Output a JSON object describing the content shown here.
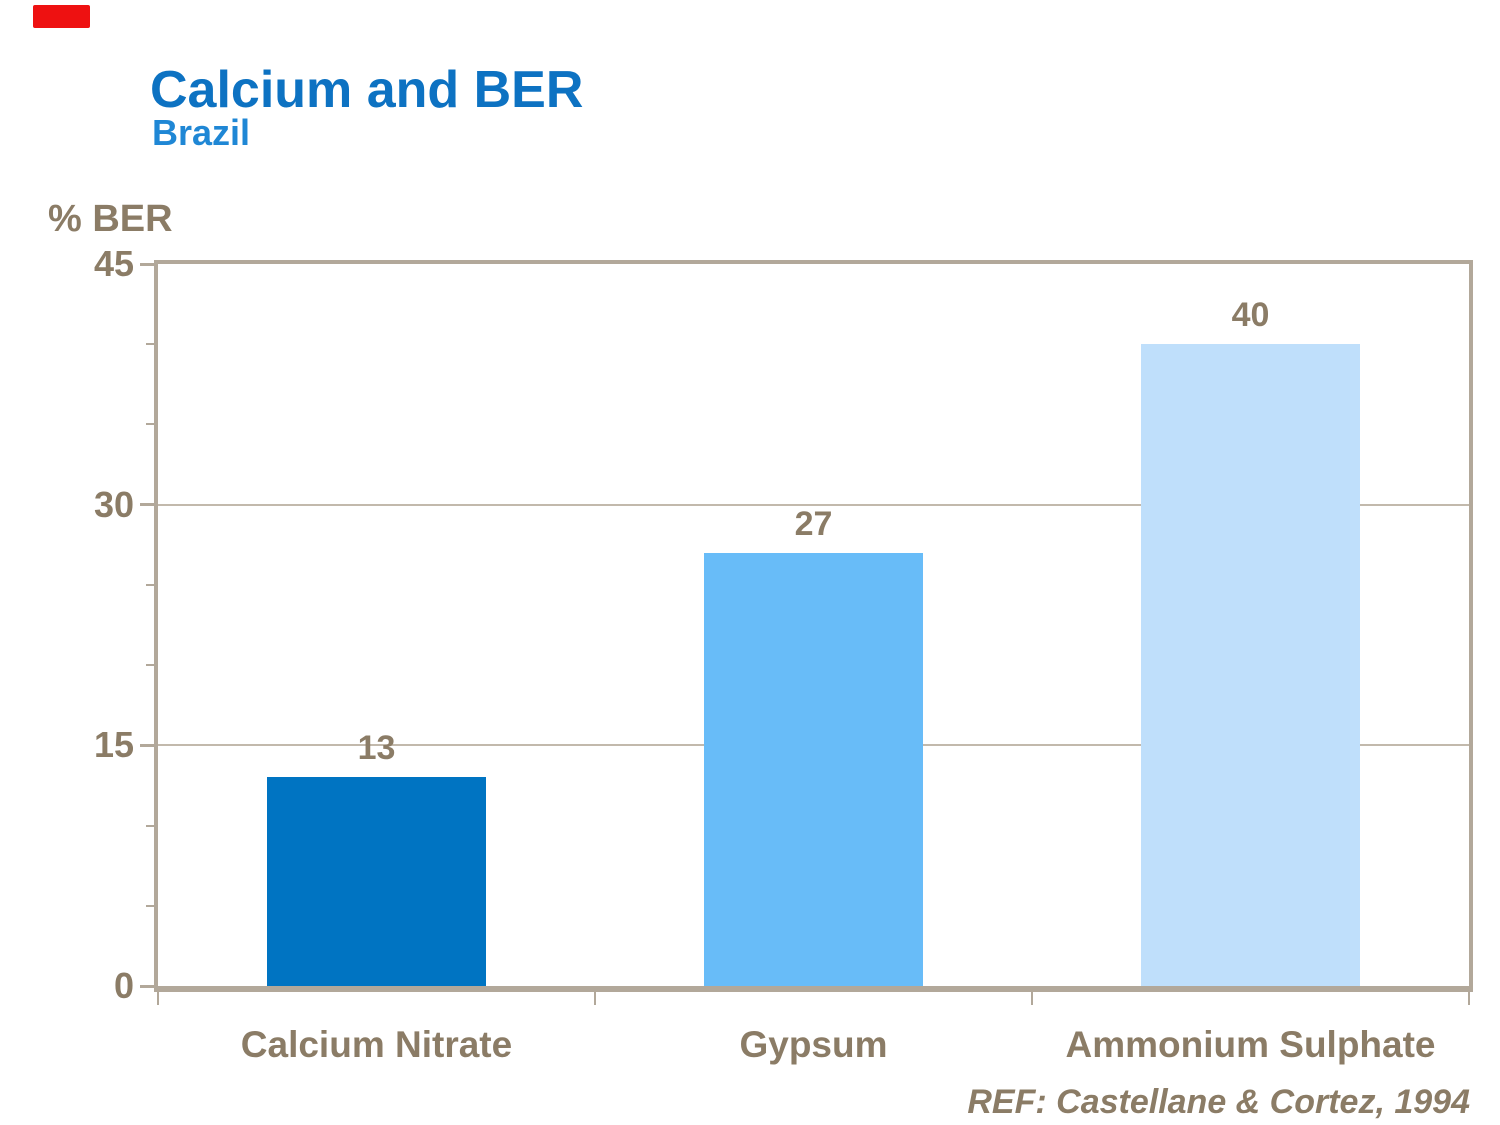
{
  "header": {
    "title": "Calcium and BER",
    "subtitle": "Brazil"
  },
  "y_axis": {
    "label": "% BER"
  },
  "footer": {
    "reference": "REF: Castellane & Cortez, 1994"
  },
  "colors": {
    "title_blue": "#0d72c2",
    "subtitle_blue": "#1f87d5",
    "text_taupe": "#8b7c66",
    "frame_taupe": "#b2a89a",
    "gridline_taupe": "#c2b9ac",
    "marker_red": "#ee1111"
  },
  "chart_data": {
    "type": "bar",
    "title": "Calcium and BER",
    "subtitle": "Brazil",
    "ylabel": "% BER",
    "categories": [
      "Calcium Nitrate",
      "Gypsum",
      "Ammonium Sulphate"
    ],
    "values": [
      13,
      27,
      40
    ],
    "value_labels": [
      "13",
      "27",
      "40"
    ],
    "bar_colors": [
      "#0074c2",
      "#68bcf8",
      "#bfdffb"
    ],
    "ylim": [
      0,
      45
    ],
    "yticks": [
      0,
      15,
      30,
      45
    ],
    "ytick_labels": [
      "0",
      "15",
      "30",
      "45"
    ],
    "minor_ytick_step": 5,
    "grid": true,
    "legend": "none",
    "annotation": "REF: Castellane & Cortez, 1994"
  }
}
